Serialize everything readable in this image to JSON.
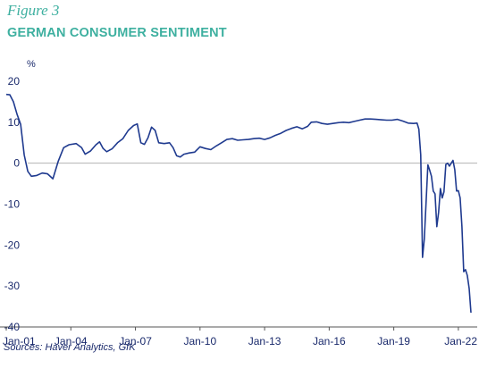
{
  "figure_label": "Figure 3",
  "title": "GERMAN CONSUMER SENTIMENT",
  "source": "Sources: Haver Analytics, GfK",
  "colors": {
    "accent": "#3eb0a0",
    "line": "#1f3a8f",
    "text": "#1a2a6c",
    "zero_line": "#b3b3b3",
    "axis": "#555555"
  },
  "chart_data": {
    "type": "line",
    "title": "GERMAN CONSUMER SENTIMENT",
    "ylabel": "%",
    "xlabel": "",
    "ylim": [
      -40,
      20
    ],
    "yticks": [
      20,
      10,
      0,
      -10,
      -20,
      -30,
      -40
    ],
    "xticks": [
      "Jan-01",
      "Jan-04",
      "Jan-07",
      "Jan-10",
      "Jan-13",
      "Jan-16",
      "Jan-19",
      "Jan-22"
    ],
    "grid": false,
    "legend": "none",
    "series": [
      {
        "values": [
          [
            "2001-01",
            16.8
          ],
          [
            "2001-03",
            16.7
          ],
          [
            "2001-05",
            15.0
          ],
          [
            "2001-07",
            12.0
          ],
          [
            "2001-09",
            9.5
          ],
          [
            "2001-11",
            2.0
          ],
          [
            "2002-01",
            -2.0
          ],
          [
            "2002-03",
            -3.2
          ],
          [
            "2002-06",
            -3.0
          ],
          [
            "2002-09",
            -2.4
          ],
          [
            "2002-12",
            -2.6
          ],
          [
            "2003-03",
            -3.8
          ],
          [
            "2003-06",
            0.5
          ],
          [
            "2003-09",
            3.8
          ],
          [
            "2003-12",
            4.5
          ],
          [
            "2004-04",
            4.8
          ],
          [
            "2004-07",
            3.8
          ],
          [
            "2004-09",
            2.2
          ],
          [
            "2004-12",
            3.0
          ],
          [
            "2005-03",
            4.5
          ],
          [
            "2005-05",
            5.2
          ],
          [
            "2005-07",
            3.6
          ],
          [
            "2005-09",
            2.8
          ],
          [
            "2005-12",
            3.5
          ],
          [
            "2006-03",
            5.0
          ],
          [
            "2006-06",
            6.0
          ],
          [
            "2006-09",
            8.0
          ],
          [
            "2006-12",
            9.2
          ],
          [
            "2007-02",
            9.6
          ],
          [
            "2007-04",
            5.0
          ],
          [
            "2007-06",
            4.6
          ],
          [
            "2007-08",
            6.2
          ],
          [
            "2007-10",
            8.8
          ],
          [
            "2007-12",
            8.0
          ],
          [
            "2008-02",
            5.0
          ],
          [
            "2008-05",
            4.8
          ],
          [
            "2008-08",
            5.0
          ],
          [
            "2008-10",
            3.8
          ],
          [
            "2008-12",
            1.8
          ],
          [
            "2009-02",
            1.5
          ],
          [
            "2009-04",
            2.2
          ],
          [
            "2009-07",
            2.5
          ],
          [
            "2009-10",
            2.7
          ],
          [
            "2010-01",
            4.0
          ],
          [
            "2010-04",
            3.6
          ],
          [
            "2010-07",
            3.3
          ],
          [
            "2010-10",
            4.2
          ],
          [
            "2011-01",
            5.0
          ],
          [
            "2011-04",
            5.8
          ],
          [
            "2011-07",
            6.0
          ],
          [
            "2011-10",
            5.6
          ],
          [
            "2012-01",
            5.7
          ],
          [
            "2012-04",
            5.8
          ],
          [
            "2012-07",
            6.0
          ],
          [
            "2012-10",
            6.1
          ],
          [
            "2013-01",
            5.8
          ],
          [
            "2013-04",
            6.2
          ],
          [
            "2013-07",
            6.8
          ],
          [
            "2013-10",
            7.3
          ],
          [
            "2014-01",
            8.0
          ],
          [
            "2014-04",
            8.5
          ],
          [
            "2014-07",
            8.9
          ],
          [
            "2014-10",
            8.4
          ],
          [
            "2015-01",
            9.0
          ],
          [
            "2015-03",
            10.0
          ],
          [
            "2015-06",
            10.1
          ],
          [
            "2015-09",
            9.7
          ],
          [
            "2015-12",
            9.5
          ],
          [
            "2016-03",
            9.7
          ],
          [
            "2016-06",
            9.9
          ],
          [
            "2016-09",
            10.0
          ],
          [
            "2016-12",
            9.9
          ],
          [
            "2017-03",
            10.2
          ],
          [
            "2017-06",
            10.5
          ],
          [
            "2017-09",
            10.8
          ],
          [
            "2017-12",
            10.8
          ],
          [
            "2018-03",
            10.7
          ],
          [
            "2018-06",
            10.6
          ],
          [
            "2018-09",
            10.5
          ],
          [
            "2018-12",
            10.5
          ],
          [
            "2019-03",
            10.7
          ],
          [
            "2019-06",
            10.3
          ],
          [
            "2019-09",
            9.8
          ],
          [
            "2019-12",
            9.7
          ],
          [
            "2020-02",
            9.8
          ],
          [
            "2020-03",
            8.3
          ],
          [
            "2020-04",
            2.0
          ],
          [
            "2020-05",
            -23.0
          ],
          [
            "2020-06",
            -18.5
          ],
          [
            "2020-07",
            -9.5
          ],
          [
            "2020-08",
            -0.4
          ],
          [
            "2020-09",
            -1.7
          ],
          [
            "2020-10",
            -3.2
          ],
          [
            "2020-11",
            -6.8
          ],
          [
            "2020-12",
            -7.5
          ],
          [
            "2021-01",
            -15.5
          ],
          [
            "2021-02",
            -12.0
          ],
          [
            "2021-03",
            -6.2
          ],
          [
            "2021-04",
            -8.5
          ],
          [
            "2021-05",
            -7.0
          ],
          [
            "2021-06",
            -0.3
          ],
          [
            "2021-07",
            0.0
          ],
          [
            "2021-08",
            -0.7
          ],
          [
            "2021-09",
            0.0
          ],
          [
            "2021-10",
            0.7
          ],
          [
            "2021-11",
            -1.6
          ],
          [
            "2021-12",
            -6.8
          ],
          [
            "2022-01",
            -6.7
          ],
          [
            "2022-02",
            -8.5
          ],
          [
            "2022-03",
            -15.5
          ],
          [
            "2022-04",
            -26.5
          ],
          [
            "2022-05",
            -26.0
          ],
          [
            "2022-06",
            -27.4
          ],
          [
            "2022-07",
            -30.6
          ],
          [
            "2022-08",
            -36.5
          ]
        ]
      }
    ]
  }
}
